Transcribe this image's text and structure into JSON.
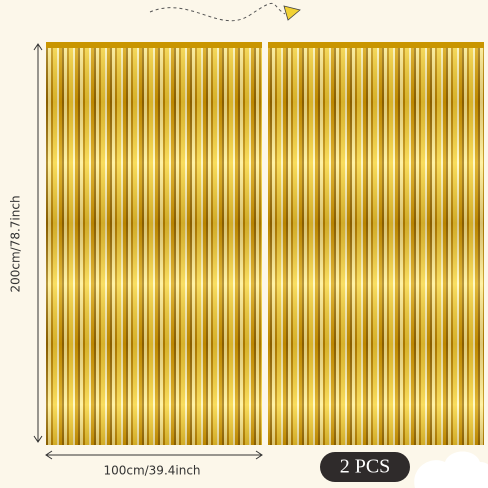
{
  "height_label": "200cm/78.7inch",
  "width_label": "100cm/39.4inch",
  "quantity_label": "2 PCS"
}
